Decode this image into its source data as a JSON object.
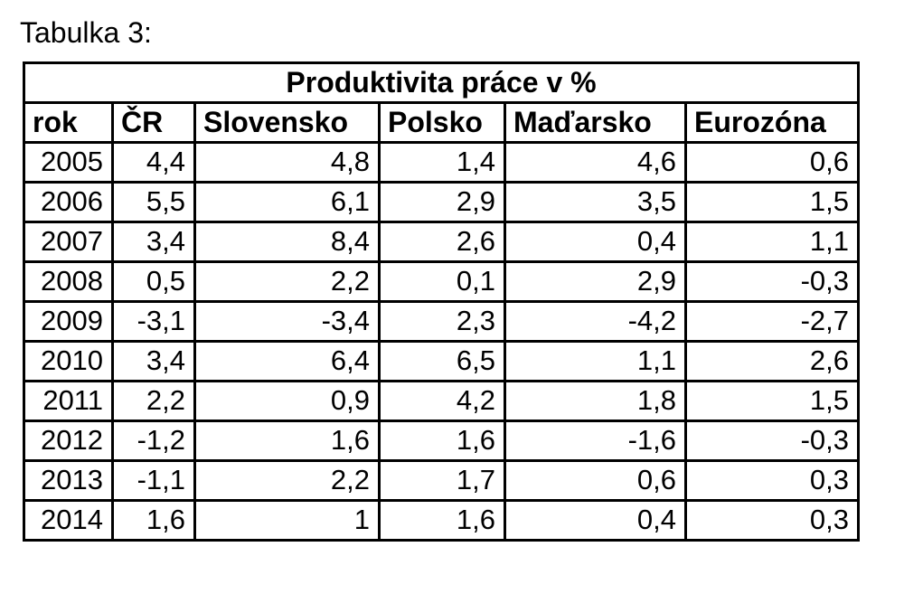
{
  "page": {
    "title": "Tabulka 3:"
  },
  "colors": {
    "text": "#000000",
    "border": "#000000",
    "background": "#ffffff"
  },
  "table": {
    "caption": "Produktivita práce v %",
    "columns": [
      "rok",
      "ČR",
      "Slovensko",
      "Polsko",
      "Maďarsko",
      "Eurozóna"
    ],
    "rows": [
      [
        "2005",
        "4,4",
        "4,8",
        "1,4",
        "4,6",
        "0,6"
      ],
      [
        "2006",
        "5,5",
        "6,1",
        "2,9",
        "3,5",
        "1,5"
      ],
      [
        "2007",
        "3,4",
        "8,4",
        "2,6",
        "0,4",
        "1,1"
      ],
      [
        "2008",
        "0,5",
        "2,2",
        "0,1",
        "2,9",
        "-0,3"
      ],
      [
        "2009",
        "-3,1",
        "-3,4",
        "2,3",
        "-4,2",
        "-2,7"
      ],
      [
        "2010",
        "3,4",
        "6,4",
        "6,5",
        "1,1",
        "2,6"
      ],
      [
        "2011",
        "2,2",
        "0,9",
        "4,2",
        "1,8",
        "1,5"
      ],
      [
        "2012",
        "-1,2",
        "1,6",
        "1,6",
        "-1,6",
        "-0,3"
      ],
      [
        "2013",
        "-1,1",
        "2,2",
        "1,7",
        "0,6",
        "0,3"
      ],
      [
        "2014",
        "1,6",
        "1",
        "1,6",
        "0,4",
        "0,3"
      ]
    ]
  }
}
